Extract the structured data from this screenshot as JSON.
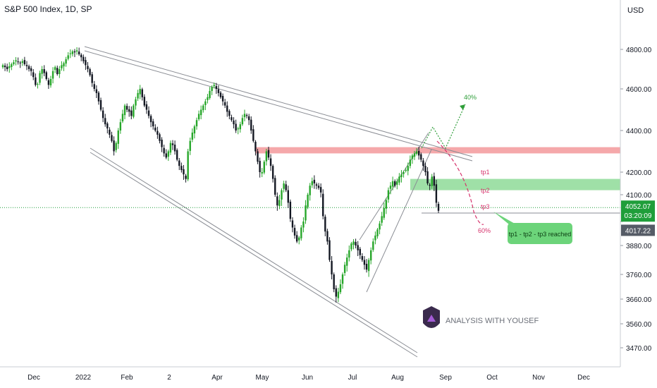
{
  "title": "S&P 500 Index, 1D, SP",
  "currency": "USD",
  "colors": {
    "up": "#26a629",
    "down": "#131722",
    "resistance_zone": "#f28b8e",
    "support_zone": "#7fd68a",
    "projection_up": "#2f9e3a",
    "projection_down": "#d6336c",
    "price_badge": "#1f9e3a",
    "close_badge": "#555b66",
    "callout": "#6cd47a"
  },
  "logo_text": "ANALYSIS WITH YOUSEF",
  "chart_data": {
    "type": "candlestick",
    "y_ticks": [
      3470,
      3560,
      3660,
      3760,
      3880,
      4000,
      4100,
      4200,
      4400,
      4600,
      4800
    ],
    "y_tick_labels": [
      "3470.00",
      "3560.00",
      "3660.00",
      "3760.00",
      "3880.00",
      "",
      "4100.00",
      "4200.00",
      "4400.00",
      "4600.00",
      "4800.00"
    ],
    "x_tick_labels": [
      "Dec",
      "2022",
      "Feb",
      "2",
      "Apr",
      "May",
      "Jun",
      "Jul",
      "Aug",
      "Sep",
      "Oct",
      "Nov",
      "Dec"
    ],
    "last_price": "4052.07",
    "countdown": "03:20:09",
    "marked_price": "4017.22",
    "zones": [
      {
        "name": "resistance",
        "from": 4290,
        "to": 4320
      },
      {
        "name": "support",
        "from": 4120,
        "to": 4170
      }
    ],
    "annotations": {
      "up_target": "40%",
      "down_target": "60%",
      "tp1": "tp1",
      "tp2": "tp2",
      "tp3": "tp3",
      "callout": "tp1 - tp2 - tp3 reached"
    },
    "closes": [
      4720,
      4710,
      4700,
      4715,
      4725,
      4735,
      4745,
      4735,
      4730,
      4740,
      4725,
      4715,
      4700,
      4690,
      4660,
      4620,
      4625,
      4680,
      4700,
      4680,
      4650,
      4620,
      4650,
      4690,
      4710,
      4675,
      4700,
      4720,
      4730,
      4750,
      4770,
      4780,
      4790,
      4785,
      4795,
      4775,
      4760,
      4740,
      4720,
      4700,
      4670,
      4630,
      4600,
      4580,
      4540,
      4500,
      4460,
      4430,
      4410,
      4380,
      4350,
      4300,
      4340,
      4400,
      4440,
      4480,
      4520,
      4500,
      4490,
      4470,
      4520,
      4550,
      4580,
      4600,
      4560,
      4520,
      4500,
      4470,
      4440,
      4420,
      4400,
      4380,
      4350,
      4320,
      4290,
      4270,
      4300,
      4340,
      4330,
      4300,
      4260,
      4230,
      4210,
      4190,
      4170,
      4300,
      4350,
      4390,
      4420,
      4450,
      4480,
      4500,
      4520,
      4540,
      4560,
      4590,
      4610,
      4620,
      4600,
      4580,
      4560,
      4540,
      4520,
      4490,
      4470,
      4450,
      4430,
      4400,
      4410,
      4430,
      4460,
      4480,
      4470,
      4450,
      4400,
      4350,
      4300,
      4250,
      4200,
      4200,
      4250,
      4300,
      4270,
      4230,
      4170,
      4100,
      4060,
      4080,
      4120,
      4150,
      4120,
      4070,
      4010,
      3970,
      3930,
      3900,
      3920,
      3970,
      4000,
      4060,
      4100,
      4140,
      4160,
      4150,
      4140,
      4130,
      4110,
      4020,
      3950,
      3900,
      3820,
      3760,
      3700,
      3670,
      3690,
      3720,
      3760,
      3800,
      3830,
      3860,
      3890,
      3900,
      3880,
      3860,
      3840,
      3820,
      3800,
      3780,
      3820,
      3860,
      3900,
      3930,
      3960,
      3990,
      4020,
      4050,
      4080,
      4120,
      4140,
      4160,
      4140,
      4160,
      4180,
      4190,
      4200,
      4210,
      4230,
      4260,
      4280,
      4290,
      4300,
      4280,
      4260,
      4230,
      4200,
      4150,
      4140,
      4180,
      4140,
      4070,
      4040
    ]
  }
}
